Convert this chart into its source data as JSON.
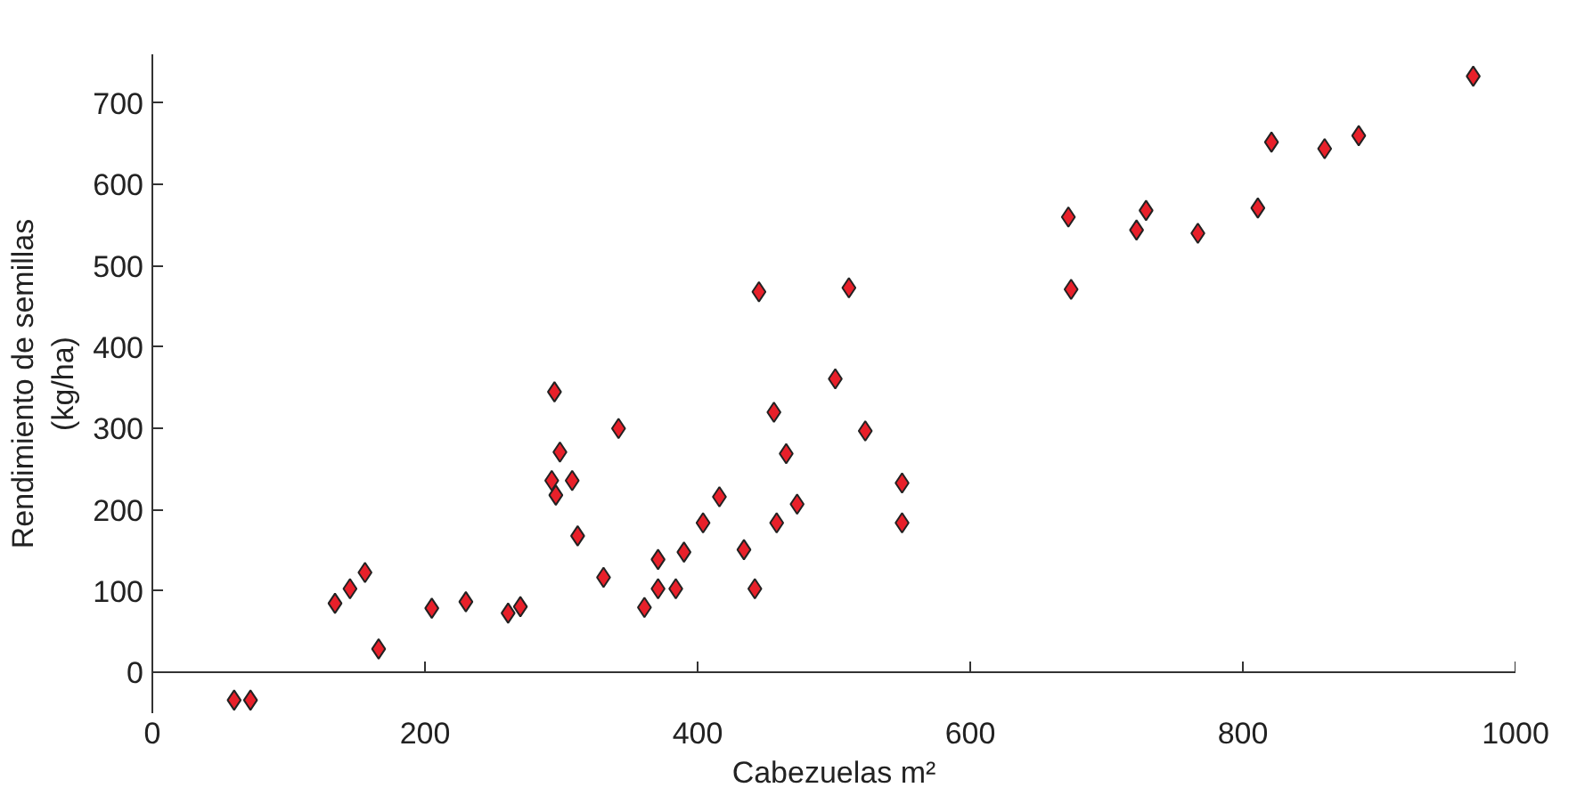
{
  "chart_data": {
    "type": "scatter",
    "xlabel": "Cabezuelas m²",
    "ylabel": "Rendimiento de semillas\n(kg/ha)",
    "xlim": [
      0,
      1000
    ],
    "xticks": [
      0,
      200,
      400,
      600,
      800,
      1000
    ],
    "ylim": [
      -50,
      760
    ],
    "yticks": [
      0,
      100,
      200,
      300,
      400,
      500,
      600,
      700
    ],
    "grid": false,
    "marker": "diamond",
    "series": [
      {
        "color": "#e8202a",
        "x": [
          60,
          72,
          134,
          145,
          156,
          166,
          205,
          230,
          261,
          270,
          295,
          299,
          293,
          296,
          308,
          312,
          342,
          331,
          361,
          371,
          371,
          384,
          390,
          404,
          416,
          434,
          442,
          445,
          456,
          458,
          465,
          473,
          501,
          511,
          523,
          550,
          550,
          672,
          674,
          722,
          729,
          767,
          811,
          821,
          860,
          885,
          969
        ],
        "values": [
          -34,
          -34,
          85,
          103,
          123,
          29,
          79,
          87,
          73,
          81,
          345,
          271,
          236,
          218,
          236,
          168,
          300,
          117,
          80,
          139,
          103,
          103,
          148,
          184,
          216,
          151,
          103,
          468,
          320,
          184,
          269,
          207,
          361,
          473,
          297,
          233,
          184,
          560,
          471,
          544,
          568,
          540,
          571,
          652,
          644,
          660,
          733
        ]
      }
    ]
  }
}
